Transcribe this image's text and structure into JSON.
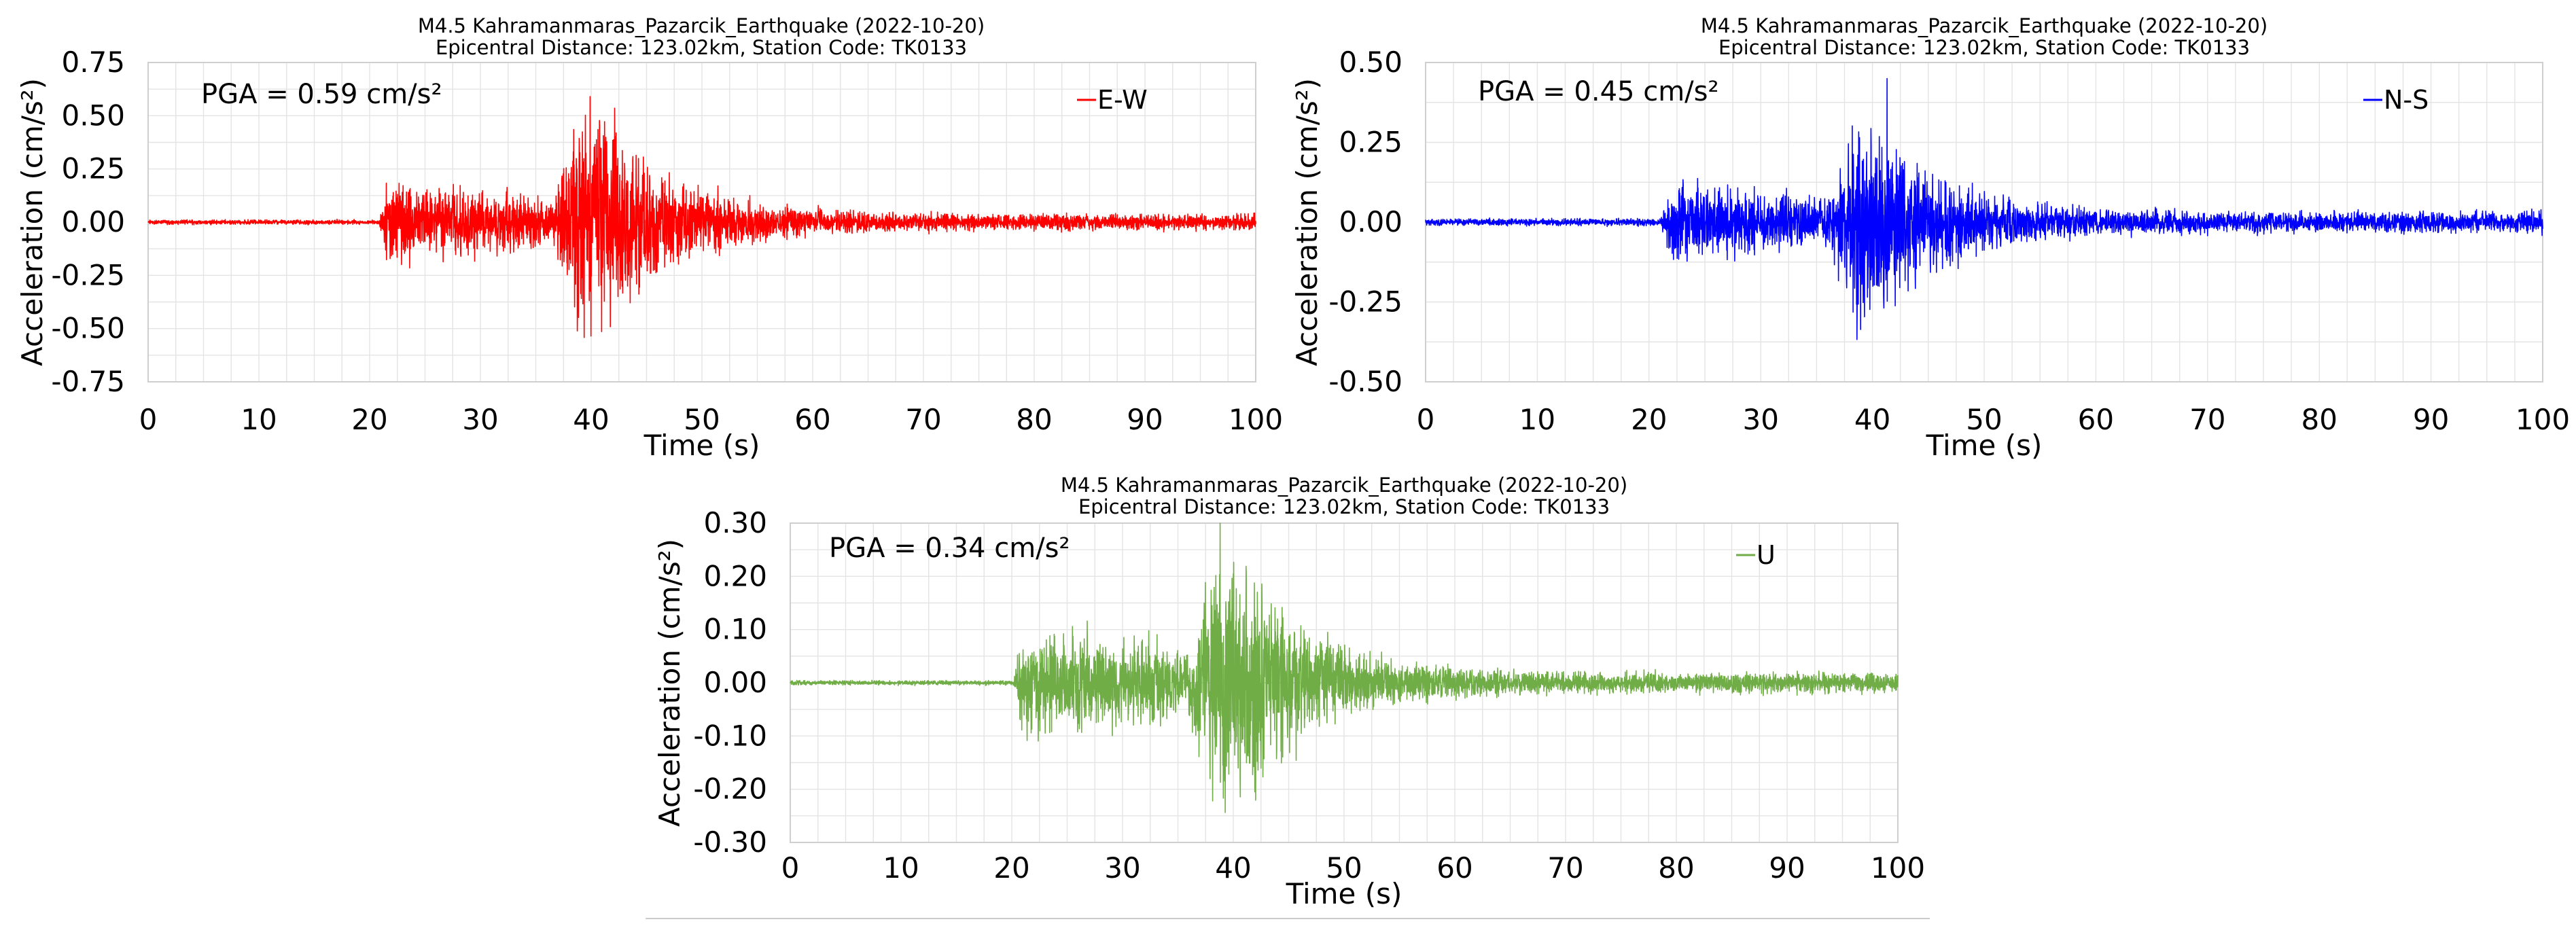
{
  "chart_data": [
    {
      "type": "line",
      "title": "M4.5 Kahramanmaras_Pazarcik_Earthquake (2022-10-20)",
      "subtitle": "Epicentral Distance: 123.02km, Station Code: TK0133",
      "xlabel": "Time (s)",
      "ylabel": "Acceleration (cm/s²)",
      "xlim": [
        0,
        100
      ],
      "ylim": [
        -0.75,
        0.75
      ],
      "x_ticks": [
        "0",
        "10",
        "20",
        "30",
        "40",
        "50",
        "60",
        "70",
        "80",
        "90",
        "100"
      ],
      "y_ticks": [
        "-0.75",
        "-0.50",
        "-0.25",
        "0.00",
        "0.25",
        "0.50",
        "0.75"
      ],
      "grid": true,
      "annotation": "PGA = 0.59 cm/s²",
      "pga": 0.59,
      "pga_time": 39.9,
      "legend_position": "top-right",
      "series": [
        {
          "name": "E-W",
          "color": "#ff0000",
          "duration": 100,
          "p_arrival": 20.8,
          "s_arrival": 36.5,
          "p_level": 0.17,
          "s_level": 0.5,
          "coda_level": 0.035,
          "noise": 0.01
        }
      ]
    },
    {
      "type": "line",
      "title": "M4.5 Kahramanmaras_Pazarcik_Earthquake (2022-10-20)",
      "subtitle": "Epicentral Distance: 123.02km, Station Code: TK0133",
      "xlabel": "Time (s)",
      "ylabel": "Acceleration (cm/s²)",
      "xlim": [
        0,
        100
      ],
      "ylim": [
        -0.5,
        0.5
      ],
      "x_ticks": [
        "0",
        "10",
        "20",
        "30",
        "40",
        "50",
        "60",
        "70",
        "80",
        "90",
        "100"
      ],
      "y_ticks": [
        "-0.50",
        "-0.25",
        "0.00",
        "0.25",
        "0.50"
      ],
      "grid": true,
      "annotation": "PGA = 0.45 cm/s²",
      "pga": 0.45,
      "pga_time": 41.3,
      "legend_position": "top-right",
      "series": [
        {
          "name": "N-S",
          "color": "#0000ff",
          "duration": 100,
          "p_arrival": 21.0,
          "s_arrival": 36.0,
          "p_level": 0.11,
          "s_level": 0.3,
          "coda_level": 0.03,
          "noise": 0.01
        }
      ]
    },
    {
      "type": "line",
      "title": "M4.5 Kahramanmaras_Pazarcik_Earthquake (2022-10-20)",
      "subtitle": "Epicentral Distance: 123.02km, Station Code: TK0133",
      "xlabel": "Time (s)",
      "ylabel": "Acceleration (cm/s²)",
      "xlim": [
        0,
        100
      ],
      "ylim": [
        -0.3,
        0.3
      ],
      "x_ticks": [
        "0",
        "10",
        "20",
        "30",
        "40",
        "50",
        "60",
        "70",
        "80",
        "90",
        "100"
      ],
      "y_ticks": [
        "-0.30",
        "-0.20",
        "-0.10",
        "0.00",
        "0.10",
        "0.20",
        "0.30"
      ],
      "grid": true,
      "annotation": "PGA = 0.34 cm/s²",
      "pga": 0.34,
      "pga_time": 38.8,
      "legend_position": "top-right",
      "series": [
        {
          "name": "U",
          "color": "#70ad47",
          "duration": 100,
          "p_arrival": 20.2,
          "s_arrival": 36.0,
          "p_level": 0.1,
          "s_level": 0.24,
          "coda_level": 0.018,
          "noise": 0.004
        }
      ]
    }
  ]
}
